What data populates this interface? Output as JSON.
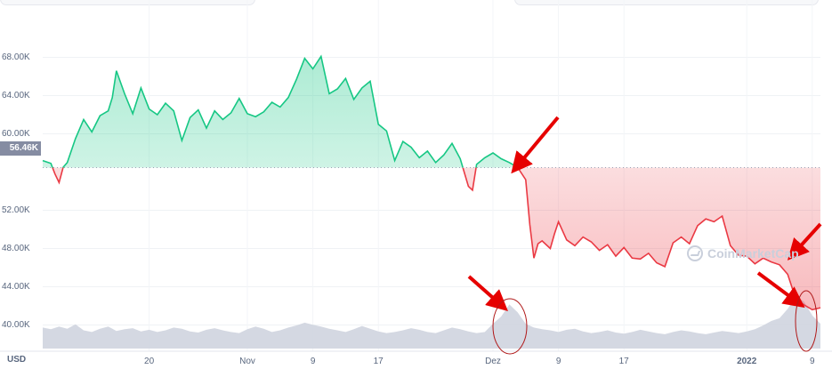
{
  "chart_data": {
    "type": "area",
    "currency_label": "USD",
    "current_price_label": "56.46K",
    "reference_price": 56460,
    "y_ticks": [
      {
        "value": 68000,
        "label": "68.00K"
      },
      {
        "value": 64000,
        "label": "64.00K"
      },
      {
        "value": 60000,
        "label": "60.00K"
      },
      {
        "value": 52000,
        "label": "52.00K"
      },
      {
        "value": 48000,
        "label": "48.00K"
      },
      {
        "value": 44000,
        "label": "44.00K"
      },
      {
        "value": 40000,
        "label": "40.00K"
      }
    ],
    "ylim": [
      37000,
      70500
    ],
    "x_ticks": [
      {
        "day": 13,
        "label": "20"
      },
      {
        "day": 25,
        "label": "Nov"
      },
      {
        "day": 33,
        "label": "9"
      },
      {
        "day": 41,
        "label": "17"
      },
      {
        "day": 55,
        "label": "Dez"
      },
      {
        "day": 63,
        "label": "9"
      },
      {
        "day": 71,
        "label": "17"
      },
      {
        "day": 86,
        "label": "2022"
      },
      {
        "day": 94,
        "label": "9"
      }
    ],
    "xlim": [
      0,
      95
    ],
    "grid": true,
    "series": [
      {
        "values": [
          [
            0,
            57200
          ],
          [
            1,
            56900
          ],
          [
            1.5,
            55800
          ],
          [
            2,
            54900
          ],
          [
            2.5,
            56500
          ],
          [
            3,
            57000
          ],
          [
            4,
            59500
          ],
          [
            5,
            61500
          ],
          [
            6,
            60200
          ],
          [
            7,
            61900
          ],
          [
            8,
            62400
          ],
          [
            8.5,
            63800
          ],
          [
            9,
            66600
          ],
          [
            10,
            64200
          ],
          [
            11,
            62100
          ],
          [
            12,
            64800
          ],
          [
            13,
            62600
          ],
          [
            14,
            62000
          ],
          [
            15,
            63200
          ],
          [
            16,
            62400
          ],
          [
            17,
            59300
          ],
          [
            18,
            61700
          ],
          [
            19,
            62500
          ],
          [
            20,
            60600
          ],
          [
            21,
            62400
          ],
          [
            22,
            61500
          ],
          [
            23,
            62200
          ],
          [
            24,
            63700
          ],
          [
            25,
            62100
          ],
          [
            26,
            61800
          ],
          [
            27,
            62300
          ],
          [
            28,
            63300
          ],
          [
            29,
            62800
          ],
          [
            30,
            63800
          ],
          [
            31,
            65700
          ],
          [
            32,
            67900
          ],
          [
            33,
            66800
          ],
          [
            34,
            68100
          ],
          [
            35,
            64200
          ],
          [
            36,
            64700
          ],
          [
            37,
            65800
          ],
          [
            38,
            63600
          ],
          [
            39,
            64800
          ],
          [
            40,
            65500
          ],
          [
            41,
            61000
          ],
          [
            42,
            60300
          ],
          [
            43,
            57200
          ],
          [
            44,
            59200
          ],
          [
            45,
            58600
          ],
          [
            46,
            57500
          ],
          [
            47,
            58200
          ],
          [
            48,
            57000
          ],
          [
            49,
            57800
          ],
          [
            50,
            59000
          ],
          [
            51,
            57400
          ],
          [
            52,
            54500
          ],
          [
            52.5,
            54100
          ],
          [
            53,
            56800
          ],
          [
            54,
            57500
          ],
          [
            55,
            58000
          ],
          [
            56,
            57400
          ],
          [
            57,
            57000
          ],
          [
            58,
            56500
          ],
          [
            59,
            55200
          ],
          [
            59.5,
            50500
          ],
          [
            60,
            47000
          ],
          [
            60.5,
            48500
          ],
          [
            61,
            48800
          ],
          [
            62,
            48000
          ],
          [
            62.5,
            49500
          ],
          [
            63,
            50800
          ],
          [
            64,
            48900
          ],
          [
            65,
            48300
          ],
          [
            66,
            49200
          ],
          [
            67,
            48700
          ],
          [
            68,
            47800
          ],
          [
            69,
            48400
          ],
          [
            70,
            47200
          ],
          [
            71,
            48100
          ],
          [
            72,
            47000
          ],
          [
            73,
            46900
          ],
          [
            74,
            47500
          ],
          [
            75,
            46500
          ],
          [
            76,
            46100
          ],
          [
            77,
            48600
          ],
          [
            78,
            49200
          ],
          [
            79,
            48500
          ],
          [
            80,
            50400
          ],
          [
            81,
            51100
          ],
          [
            82,
            50800
          ],
          [
            83,
            51400
          ],
          [
            84,
            48300
          ],
          [
            85,
            47300
          ],
          [
            86,
            47200
          ],
          [
            87,
            46400
          ],
          [
            88,
            47000
          ],
          [
            89,
            46600
          ],
          [
            90,
            46300
          ],
          [
            91,
            45300
          ],
          [
            92,
            42700
          ],
          [
            93,
            42100
          ],
          [
            94,
            41600
          ],
          [
            95,
            41800
          ]
        ]
      }
    ],
    "volume": [
      0.38,
      0.35,
      0.4,
      0.36,
      0.44,
      0.33,
      0.3,
      0.36,
      0.4,
      0.32,
      0.35,
      0.37,
      0.31,
      0.34,
      0.3,
      0.33,
      0.38,
      0.36,
      0.31,
      0.29,
      0.34,
      0.37,
      0.33,
      0.3,
      0.28,
      0.35,
      0.4,
      0.36,
      0.3,
      0.33,
      0.38,
      0.42,
      0.47,
      0.43,
      0.4,
      0.36,
      0.33,
      0.3,
      0.35,
      0.41,
      0.36,
      0.31,
      0.28,
      0.3,
      0.33,
      0.37,
      0.34,
      0.3,
      0.28,
      0.33,
      0.38,
      0.35,
      0.31,
      0.28,
      0.3,
      0.45,
      0.58,
      0.8,
      0.66,
      0.45,
      0.38,
      0.35,
      0.33,
      0.3,
      0.34,
      0.36,
      0.31,
      0.28,
      0.3,
      0.33,
      0.29,
      0.27,
      0.3,
      0.34,
      0.31,
      0.28,
      0.26,
      0.3,
      0.33,
      0.31,
      0.28,
      0.26,
      0.29,
      0.32,
      0.3,
      0.28,
      0.31,
      0.35,
      0.42,
      0.5,
      0.55,
      0.72,
      0.95,
      0.85,
      0.6,
      0.45
    ],
    "colors": {
      "up": "#16c784",
      "down": "#ea3943",
      "volume": "#cfd4df",
      "annotation": "#e60000",
      "ellipse": "#b01818"
    }
  },
  "watermark": {
    "text": "CoinMarketCap",
    "icon": "coinmarketcap-logo-icon"
  }
}
